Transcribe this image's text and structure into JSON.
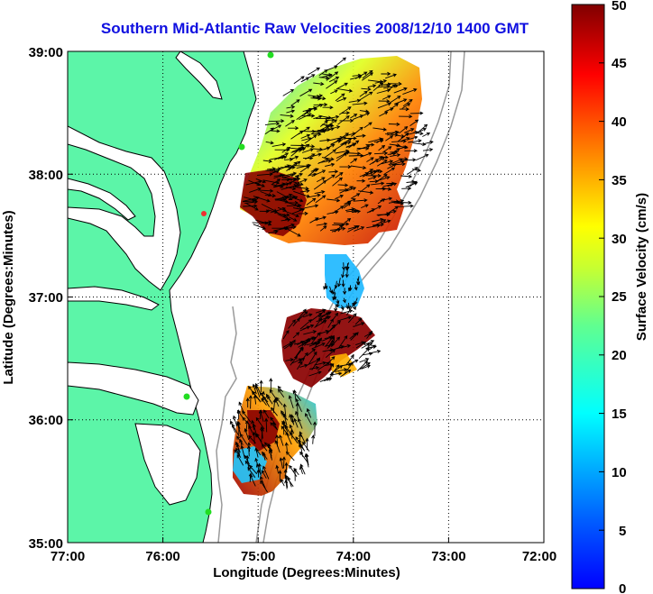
{
  "title": "Southern Mid-Atlantic Raw Velocities 2008/12/10 1400 GMT",
  "map": {
    "xlabel": "Longitude (Degrees:Minutes)",
    "ylabel": "Latitude (Degrees:Minutes)",
    "x_ticks": [
      "77:00",
      "76:00",
      "75:00",
      "74:00",
      "73:00",
      "72:00"
    ],
    "y_ticks": [
      "39:00",
      "38:00",
      "37:00",
      "36:00",
      "35:00"
    ],
    "lon_range": [
      -77,
      -72
    ],
    "lat_range": [
      35,
      39
    ],
    "grid": "dotted",
    "land_color": "#5cf5a8",
    "bathymetry_color": "#9a9a9a",
    "station_color": "#22dd22"
  },
  "colorbar": {
    "label": "Surface Velocity (cm/s)",
    "ticks": [
      "50",
      "45",
      "40",
      "35",
      "30",
      "25",
      "20",
      "15",
      "10",
      "5",
      "0"
    ],
    "range": [
      0,
      50
    ],
    "colormap": "jet"
  }
}
